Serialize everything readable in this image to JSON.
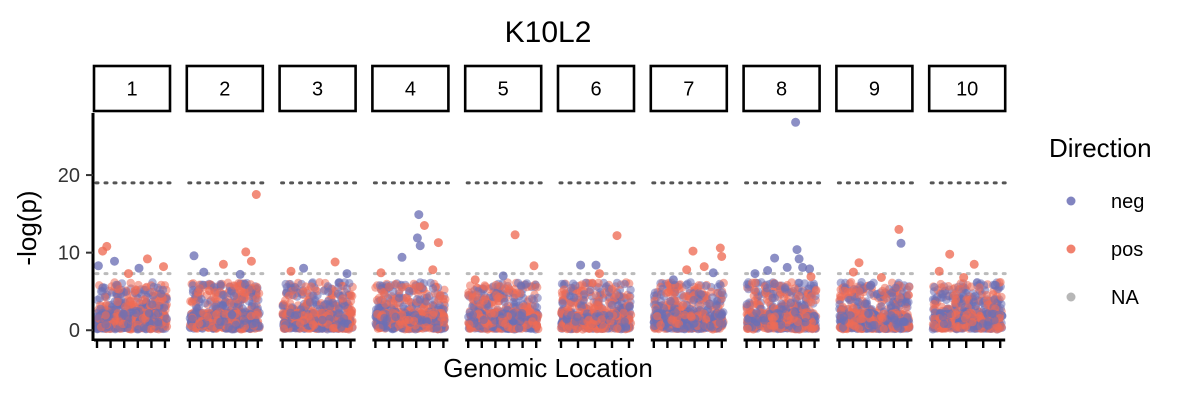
{
  "chart_data": {
    "type": "scatter",
    "title": "K10L2",
    "xlabel": "Genomic Location",
    "ylabel": "-log(p)",
    "ylim": [
      -1,
      28
    ],
    "yticks": [
      0,
      10,
      20
    ],
    "facets": [
      "1",
      "2",
      "3",
      "4",
      "5",
      "6",
      "7",
      "8",
      "9",
      "10"
    ],
    "facet_minor_ticks": [
      6,
      7,
      6,
      6,
      6,
      5,
      6,
      6,
      6,
      5
    ],
    "reference_lines": [
      {
        "y": 19,
        "style": "dotted",
        "color": "#555555"
      },
      {
        "y": 7.3,
        "style": "dotted",
        "color": "#bbbbbb"
      }
    ],
    "legend": {
      "title": "Direction",
      "position": "right",
      "entries": [
        {
          "label": "neg",
          "color": "#6b6fb5"
        },
        {
          "label": "pos",
          "color": "#ee6b55"
        },
        {
          "label": "NA",
          "color": "#aaaaaa"
        }
      ]
    },
    "highlights": [
      {
        "facet": "1",
        "x": 0.02,
        "y": 8.3,
        "dir": "neg"
      },
      {
        "facet": "1",
        "x": 0.08,
        "y": 10.2,
        "dir": "pos"
      },
      {
        "facet": "1",
        "x": 0.14,
        "y": 10.8,
        "dir": "pos"
      },
      {
        "facet": "1",
        "x": 0.25,
        "y": 8.9,
        "dir": "neg"
      },
      {
        "facet": "1",
        "x": 0.45,
        "y": 7.3,
        "dir": "pos"
      },
      {
        "facet": "1",
        "x": 0.6,
        "y": 8.0,
        "dir": "neg"
      },
      {
        "facet": "1",
        "x": 0.72,
        "y": 9.2,
        "dir": "pos"
      },
      {
        "facet": "1",
        "x": 0.95,
        "y": 8.2,
        "dir": "pos"
      },
      {
        "facet": "2",
        "x": 0.06,
        "y": 9.6,
        "dir": "neg"
      },
      {
        "facet": "2",
        "x": 0.2,
        "y": 7.5,
        "dir": "neg"
      },
      {
        "facet": "2",
        "x": 0.48,
        "y": 8.5,
        "dir": "pos"
      },
      {
        "facet": "2",
        "x": 0.72,
        "y": 7.2,
        "dir": "neg"
      },
      {
        "facet": "2",
        "x": 0.8,
        "y": 10.1,
        "dir": "pos"
      },
      {
        "facet": "2",
        "x": 0.88,
        "y": 8.9,
        "dir": "pos"
      },
      {
        "facet": "2",
        "x": 0.95,
        "y": 17.5,
        "dir": "pos"
      },
      {
        "facet": "3",
        "x": 0.12,
        "y": 7.6,
        "dir": "pos"
      },
      {
        "facet": "3",
        "x": 0.3,
        "y": 8.0,
        "dir": "neg"
      },
      {
        "facet": "3",
        "x": 0.75,
        "y": 8.8,
        "dir": "pos"
      },
      {
        "facet": "3",
        "x": 0.92,
        "y": 7.3,
        "dir": "neg"
      },
      {
        "facet": "4",
        "x": 0.08,
        "y": 7.4,
        "dir": "pos"
      },
      {
        "facet": "4",
        "x": 0.38,
        "y": 9.4,
        "dir": "neg"
      },
      {
        "facet": "4",
        "x": 0.6,
        "y": 11.9,
        "dir": "neg"
      },
      {
        "facet": "4",
        "x": 0.62,
        "y": 14.9,
        "dir": "neg"
      },
      {
        "facet": "4",
        "x": 0.64,
        "y": 10.9,
        "dir": "neg"
      },
      {
        "facet": "4",
        "x": 0.7,
        "y": 13.5,
        "dir": "pos"
      },
      {
        "facet": "4",
        "x": 0.9,
        "y": 11.3,
        "dir": "pos"
      },
      {
        "facet": "4",
        "x": 0.82,
        "y": 7.8,
        "dir": "pos"
      },
      {
        "facet": "5",
        "x": 0.1,
        "y": 6.5,
        "dir": "pos"
      },
      {
        "facet": "5",
        "x": 0.5,
        "y": 7.0,
        "dir": "neg"
      },
      {
        "facet": "5",
        "x": 0.67,
        "y": 12.3,
        "dir": "pos"
      },
      {
        "facet": "5",
        "x": 0.94,
        "y": 8.3,
        "dir": "pos"
      },
      {
        "facet": "6",
        "x": 0.28,
        "y": 8.4,
        "dir": "neg"
      },
      {
        "facet": "6",
        "x": 0.5,
        "y": 8.4,
        "dir": "neg"
      },
      {
        "facet": "6",
        "x": 0.55,
        "y": 7.3,
        "dir": "pos"
      },
      {
        "facet": "6",
        "x": 0.8,
        "y": 12.2,
        "dir": "pos"
      },
      {
        "facet": "7",
        "x": 0.28,
        "y": 6.5,
        "dir": "neg"
      },
      {
        "facet": "7",
        "x": 0.47,
        "y": 7.8,
        "dir": "pos"
      },
      {
        "facet": "7",
        "x": 0.56,
        "y": 10.2,
        "dir": "pos"
      },
      {
        "facet": "7",
        "x": 0.72,
        "y": 8.2,
        "dir": "pos"
      },
      {
        "facet": "7",
        "x": 0.85,
        "y": 7.4,
        "dir": "neg"
      },
      {
        "facet": "7",
        "x": 0.95,
        "y": 10.6,
        "dir": "pos"
      },
      {
        "facet": "7",
        "x": 0.97,
        "y": 9.5,
        "dir": "pos"
      },
      {
        "facet": "8",
        "x": 0.12,
        "y": 7.3,
        "dir": "neg"
      },
      {
        "facet": "8",
        "x": 0.3,
        "y": 7.7,
        "dir": "neg"
      },
      {
        "facet": "8",
        "x": 0.4,
        "y": 9.3,
        "dir": "neg"
      },
      {
        "facet": "8",
        "x": 0.58,
        "y": 8.1,
        "dir": "neg"
      },
      {
        "facet": "8",
        "x": 0.7,
        "y": 26.8,
        "dir": "neg"
      },
      {
        "facet": "8",
        "x": 0.72,
        "y": 10.4,
        "dir": "neg"
      },
      {
        "facet": "8",
        "x": 0.75,
        "y": 9.2,
        "dir": "neg"
      },
      {
        "facet": "8",
        "x": 0.8,
        "y": 8.1,
        "dir": "neg"
      },
      {
        "facet": "8",
        "x": 0.9,
        "y": 7.9,
        "dir": "neg"
      },
      {
        "facet": "8",
        "x": 0.92,
        "y": 6.9,
        "dir": "pos"
      },
      {
        "facet": "9",
        "x": 0.2,
        "y": 7.5,
        "dir": "pos"
      },
      {
        "facet": "9",
        "x": 0.28,
        "y": 8.7,
        "dir": "pos"
      },
      {
        "facet": "9",
        "x": 0.45,
        "y": 5.8,
        "dir": "neg"
      },
      {
        "facet": "9",
        "x": 0.85,
        "y": 13.0,
        "dir": "pos"
      },
      {
        "facet": "9",
        "x": 0.88,
        "y": 11.2,
        "dir": "neg"
      },
      {
        "facet": "9",
        "x": 0.6,
        "y": 6.8,
        "dir": "pos"
      },
      {
        "facet": "10",
        "x": 0.1,
        "y": 7.6,
        "dir": "pos"
      },
      {
        "facet": "10",
        "x": 0.25,
        "y": 9.8,
        "dir": "pos"
      },
      {
        "facet": "10",
        "x": 0.45,
        "y": 6.8,
        "dir": "pos"
      },
      {
        "facet": "10",
        "x": 0.6,
        "y": 8.5,
        "dir": "pos"
      },
      {
        "facet": "10",
        "x": 0.9,
        "y": 5.8,
        "dir": "neg"
      }
    ]
  }
}
